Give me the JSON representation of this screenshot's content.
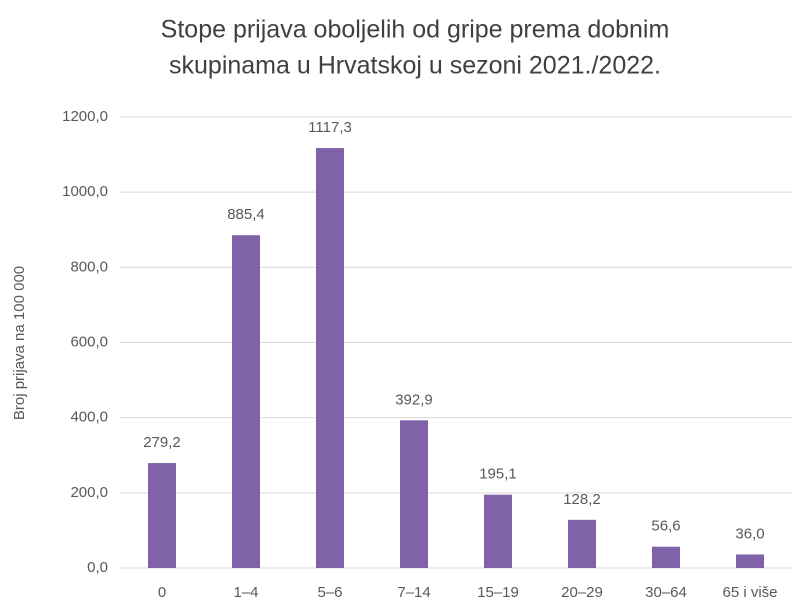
{
  "chart_data": {
    "type": "bar",
    "title": [
      "Stope prijava oboljelih od gripe prema dobnim",
      "skupinama u Hrvatskoj u sezoni 2021./2022."
    ],
    "y_axis_label": "Broj prijava na 100 000",
    "categories": [
      "0",
      "1–4",
      "5–6",
      "7–14",
      "15–19",
      "20–29",
      "30–64",
      "65 i više"
    ],
    "values": [
      279.2,
      885.4,
      1117.3,
      392.9,
      195.1,
      128.2,
      56.6,
      36.0
    ],
    "value_labels": [
      "279,2",
      "885,4",
      "1117,3",
      "392,9",
      "195,1",
      "128,2",
      "56,6",
      "36,0"
    ],
    "color": "#7f62a8",
    "ylim": [
      0,
      1200
    ],
    "yticks": [
      {
        "value": 0,
        "label": "0,0"
      },
      {
        "value": 200,
        "label": "200,0"
      },
      {
        "value": 400,
        "label": "400,0"
      },
      {
        "value": 600,
        "label": "600,0"
      },
      {
        "value": 800,
        "label": "800,0"
      },
      {
        "value": 1000,
        "label": "1000,0"
      },
      {
        "value": 1200,
        "label": "1200,0"
      }
    ],
    "grid": true
  }
}
